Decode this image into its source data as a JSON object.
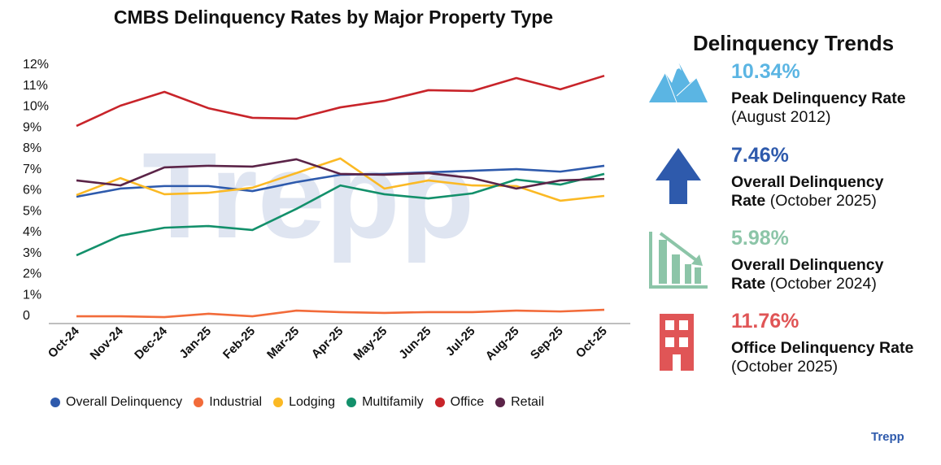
{
  "chart_data": {
    "type": "line",
    "title": "CMBS Delinquency Rates by Major Property Type",
    "xlabel": "",
    "ylabel": "",
    "ylim": [
      0,
      12
    ],
    "y_ticks": [
      "0",
      "1%",
      "2%",
      "3%",
      "4%",
      "5%",
      "6%",
      "7%",
      "8%",
      "9%",
      "10%",
      "11%",
      "12%"
    ],
    "grid": false,
    "legend": "bottom",
    "watermark": "Trepp",
    "categories": [
      "Oct-24",
      "Nov-24",
      "Dec-24",
      "Jan-25",
      "Feb-25",
      "Mar-25",
      "Apr-25",
      "May-25",
      "Jun-25",
      "Jul-25",
      "Aug-25",
      "Sep-25",
      "Oct-25"
    ],
    "series": [
      {
        "name": "Overall Delinquency",
        "color": "#2e5aac",
        "values": [
          5.98,
          6.37,
          6.49,
          6.49,
          6.25,
          6.68,
          7.03,
          7.07,
          7.15,
          7.22,
          7.3,
          7.18,
          7.46
        ]
      },
      {
        "name": "Industrial",
        "color": "#f26b3a",
        "values": [
          0.27,
          0.27,
          0.23,
          0.39,
          0.27,
          0.54,
          0.47,
          0.43,
          0.47,
          0.47,
          0.54,
          0.5,
          0.58
        ]
      },
      {
        "name": "Lodging",
        "color": "#fbb924",
        "values": [
          6.06,
          6.87,
          6.1,
          6.17,
          6.41,
          7.11,
          7.81,
          6.37,
          6.76,
          6.52,
          6.49,
          5.79,
          6.02
        ]
      },
      {
        "name": "Multifamily",
        "color": "#13906b",
        "values": [
          3.18,
          4.12,
          4.5,
          4.58,
          4.39,
          5.4,
          6.52,
          6.1,
          5.9,
          6.14,
          6.8,
          6.56,
          7.07
        ]
      },
      {
        "name": "Office",
        "color": "#c8242a",
        "values": [
          9.36,
          10.33,
          10.99,
          10.21,
          9.75,
          9.71,
          10.25,
          10.56,
          11.07,
          11.03,
          11.65,
          11.11,
          11.76
        ]
      },
      {
        "name": "Retail",
        "color": "#5b2448",
        "values": [
          6.76,
          6.52,
          7.38,
          7.46,
          7.42,
          7.77,
          7.07,
          7.03,
          7.11,
          6.87,
          6.37,
          6.76,
          6.83
        ]
      }
    ]
  },
  "side_panel": {
    "title": "Delinquency Trends",
    "stats": [
      {
        "icon": "mountain-icon",
        "color": "#5bb5e3",
        "value": "10.34%",
        "bold": "Peak Delinquency Rate",
        "light": "",
        "line2": "(August 2012)",
        "line2_bold": true
      },
      {
        "icon": "arrow-up-icon",
        "color": "#2e5aac",
        "value": "7.46%",
        "bold": "Overall Delinquency",
        "rate": "Rate",
        "light": "(October 2025)"
      },
      {
        "icon": "declining-bar-chart-icon",
        "color": "#8cc5a8",
        "value": "5.98%",
        "bold": "Overall Delinquency",
        "rate": "Rate",
        "light": "(October 2024)"
      },
      {
        "icon": "office-building-icon",
        "color": "#e05556",
        "value": "11.76%",
        "bold": "Office Delinquency Rate",
        "light": "(October 2025)"
      }
    ]
  },
  "brand": "Trepp"
}
